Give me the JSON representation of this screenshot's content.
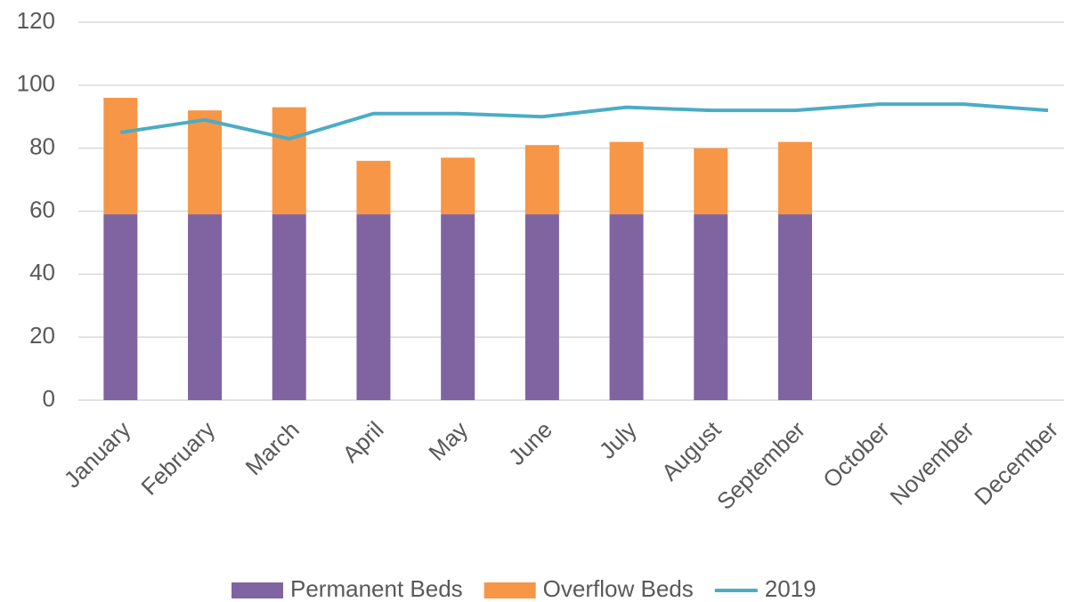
{
  "chart_data": {
    "type": "bar",
    "categories": [
      "January",
      "February",
      "March",
      "April",
      "May",
      "June",
      "July",
      "August",
      "September",
      "October",
      "November",
      "December"
    ],
    "series": [
      {
        "name": "Permanent Beds",
        "type": "bar",
        "color": "#8064a2",
        "values": [
          59,
          59,
          59,
          59,
          59,
          59,
          59,
          59,
          59,
          null,
          null,
          null
        ]
      },
      {
        "name": "Overflow Beds",
        "type": "bar",
        "color": "#f79646",
        "values": [
          37,
          33,
          34,
          17,
          18,
          22,
          23,
          21,
          23,
          null,
          null,
          null
        ]
      },
      {
        "name": "2019",
        "type": "line",
        "color": "#4bacc6",
        "values": [
          85,
          89,
          83,
          91,
          91,
          90,
          93,
          92,
          92,
          94,
          94,
          92
        ]
      }
    ],
    "stacked": true,
    "ylim": [
      0,
      120
    ],
    "yticks": [
      0,
      20,
      40,
      60,
      80,
      100,
      120
    ],
    "grid": true,
    "legend": "bottom"
  }
}
